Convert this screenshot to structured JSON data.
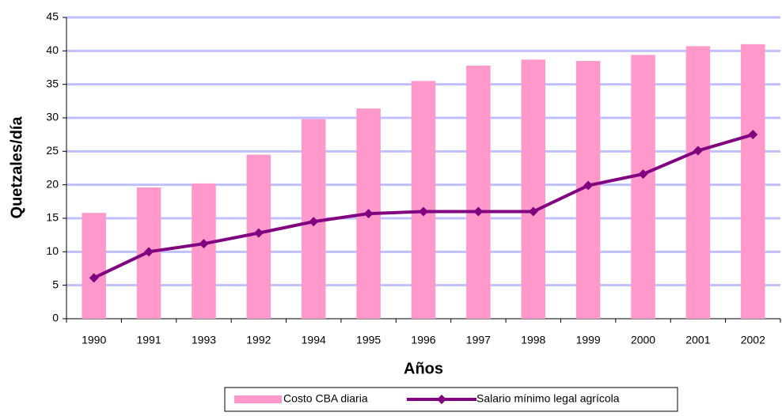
{
  "chart_data": {
    "type": "bar",
    "xlabel": "Años",
    "ylabel": "Quetzales/día",
    "categories": [
      "1990",
      "1991",
      "1993",
      "1992",
      "1994",
      "1995",
      "1996",
      "1997",
      "1998",
      "1999",
      "2000",
      "2001",
      "2002"
    ],
    "series": [
      {
        "name": "Costo CBA diaria",
        "type": "bar",
        "color": "#ff99cc",
        "values": [
          15.8,
          19.6,
          20.2,
          24.5,
          29.8,
          31.4,
          35.5,
          37.8,
          38.7,
          38.5,
          39.4,
          40.7,
          41.0
        ]
      },
      {
        "name": "Salario mínimo legal agrícola",
        "type": "line",
        "color": "#800080",
        "values": [
          6.1,
          10.0,
          11.2,
          12.8,
          14.5,
          15.7,
          16.0,
          16.0,
          16.0,
          19.9,
          21.6,
          25.1,
          27.5
        ]
      }
    ],
    "ylim": [
      0,
      45
    ],
    "yticks": [
      0,
      5,
      10,
      15,
      20,
      25,
      30,
      35,
      40,
      45
    ],
    "grid": true
  }
}
